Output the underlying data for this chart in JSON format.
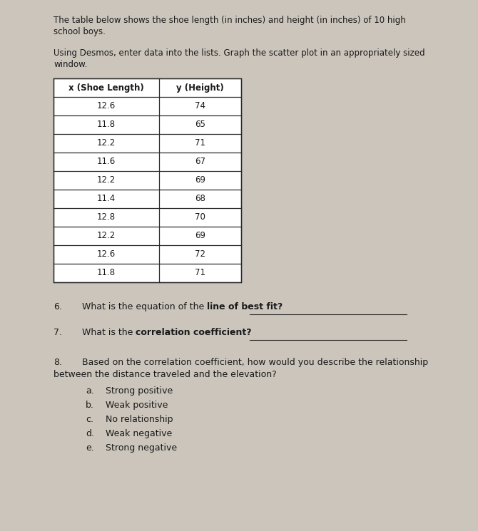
{
  "title_line1": "The table below shows the shoe length (in inches) and height (in inches) of 10 high",
  "title_line2": "school boys.",
  "subtitle_line1": "Using Desmos, enter data into the lists. Graph the scatter plot in an appropriately sized",
  "subtitle_line2": "window.",
  "col1_header": "x (Shoe Length)",
  "col2_header": "y (Height)",
  "shoe_lengths": [
    12.6,
    11.8,
    12.2,
    11.6,
    12.2,
    11.4,
    12.8,
    12.2,
    12.6,
    11.8
  ],
  "heights": [
    74,
    65,
    71,
    67,
    69,
    68,
    70,
    69,
    72,
    71
  ],
  "q6_number": "6.",
  "q6_text_normal": "What is the equation of the ",
  "q6_text_bold": "line of best fit?",
  "q7_number": "7.",
  "q7_text_normal": "What is the ",
  "q7_text_bold": "correlation coefficient?",
  "q8_number": "8.",
  "q8_text_normal": "Based on the correlation coefficient, how would you describe the relationship",
  "q8_text_line2": "between the distance traveled and the elevation?",
  "option_labels": [
    "a.",
    "b.",
    "c.",
    "d.",
    "e."
  ],
  "option_texts": [
    "Strong positive",
    "Weak positive",
    "No relationship",
    "Weak negative",
    "Strong negative"
  ],
  "paper_bg": "#cbc5bc",
  "text_color": "#1a1a1a",
  "line_color": "#2a2a2a"
}
